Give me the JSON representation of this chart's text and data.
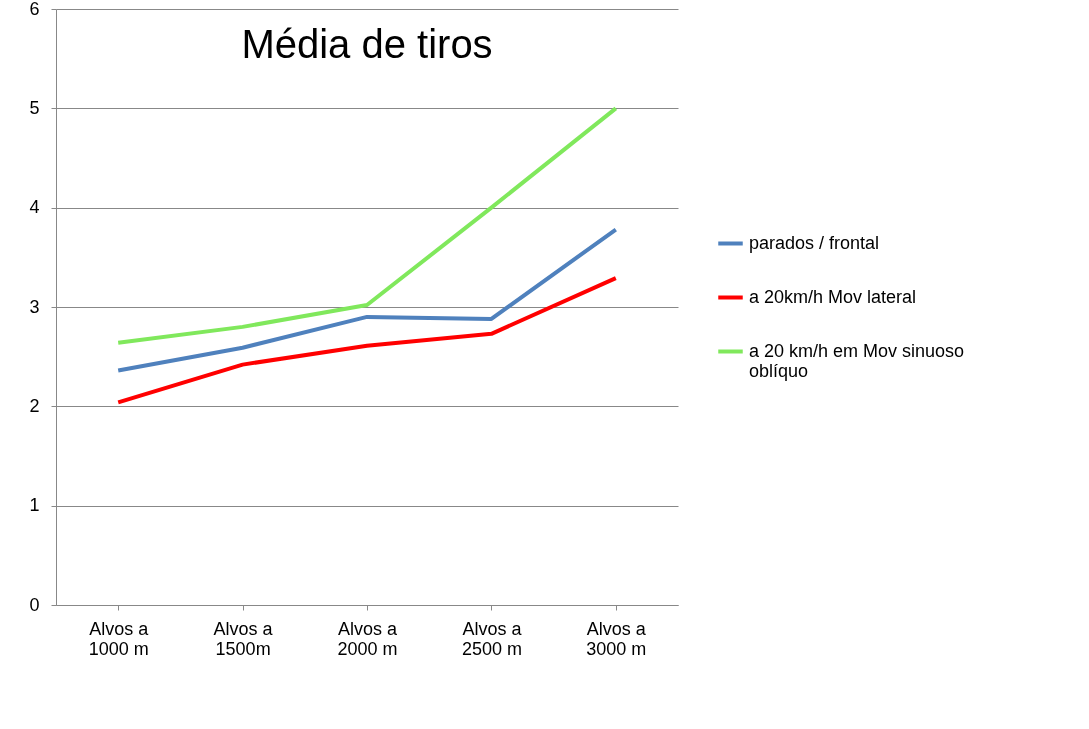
{
  "chart_data": {
    "type": "line",
    "title": "Média de tiros",
    "categories": [
      "Alvos a 1000 m",
      "Alvos a 1500m",
      "Alvos a 2000 m",
      "Alvos a 2500 m",
      "Alvos a 3000 m"
    ],
    "series": [
      {
        "name": "parados  / frontal",
        "color": "#4f81bd",
        "values": [
          2.36,
          2.59,
          2.9,
          2.88,
          3.78
        ]
      },
      {
        "name": "a 20km/h Mov lateral",
        "color": "#ff0000",
        "values": [
          2.04,
          2.42,
          2.61,
          2.73,
          3.29
        ]
      },
      {
        "name": "a 20 km/h em Mov sinuoso oblíquo",
        "color": "#80e85c",
        "values": [
          2.64,
          2.8,
          3.02,
          4.0,
          5.0
        ]
      }
    ],
    "ylim": [
      0,
      6
    ],
    "yticks": [
      0,
      1,
      2,
      3,
      4,
      5,
      6
    ],
    "grid": "y",
    "legend": "right",
    "marker": "none",
    "line_style": "solid"
  }
}
